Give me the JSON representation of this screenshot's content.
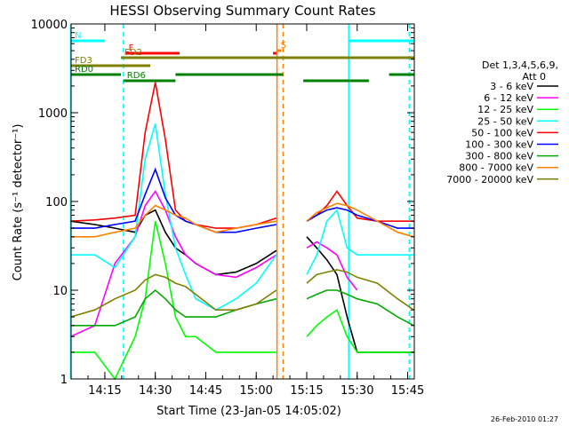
{
  "chart_data": {
    "type": "line",
    "title": "HESSI Observing Summary Count Rates",
    "xlabel": "Start Time (23-Jan-05 14:05:02)",
    "ylabel": "Count Rate (s⁻¹ detector⁻¹)",
    "y_scale": "log",
    "ylim": [
      1,
      10000
    ],
    "xlim_minutes": [
      14.083,
      15.783
    ],
    "x_ticks": [
      {
        "t": 14.25,
        "label": "14:15"
      },
      {
        "t": 14.5,
        "label": "14:30"
      },
      {
        "t": 14.75,
        "label": "14:45"
      },
      {
        "t": 15.0,
        "label": "15:00"
      },
      {
        "t": 15.25,
        "label": "15:15"
      },
      {
        "t": 15.5,
        "label": "15:30"
      },
      {
        "t": 15.75,
        "label": "15:45"
      }
    ],
    "y_ticks": [
      {
        "v": 1,
        "label": "1"
      },
      {
        "v": 10,
        "label": "10"
      },
      {
        "v": 100,
        "label": "100"
      },
      {
        "v": 1000,
        "label": "1000"
      },
      {
        "v": 10000,
        "label": "10000"
      }
    ],
    "legend_header": [
      "Det 1,3,4,5,6,9,",
      "Att 0"
    ],
    "legend_placement": "right",
    "timestamp": "26-Feb-2010 01:27",
    "series": [
      {
        "name": "3 - 6 keV",
        "color": "#000000",
        "x": [
          14.08,
          14.2,
          14.3,
          14.4,
          14.45,
          14.5,
          14.55,
          14.6,
          14.65,
          14.7,
          14.8,
          14.9,
          15.0,
          15.1,
          15.15,
          15.2,
          15.25,
          15.3,
          15.35,
          15.4,
          15.45,
          15.5,
          15.6,
          15.7,
          15.78
        ],
        "y": [
          60,
          55,
          50,
          45,
          70,
          80,
          45,
          30,
          25,
          20,
          15,
          16,
          20,
          28,
          null,
          null,
          40,
          30,
          22,
          15,
          5,
          2,
          2,
          2,
          2
        ]
      },
      {
        "name": "6 - 12 keV",
        "color": "#ff00ff",
        "x": [
          14.08,
          14.2,
          14.3,
          14.4,
          14.45,
          14.5,
          14.55,
          14.6,
          14.65,
          14.7,
          14.8,
          14.9,
          15.0,
          15.1,
          15.15,
          15.2,
          15.25,
          15.3,
          15.35,
          15.4,
          15.45,
          15.5
        ],
        "y": [
          3,
          4,
          20,
          40,
          90,
          130,
          80,
          40,
          25,
          20,
          15,
          14,
          18,
          25,
          null,
          null,
          30,
          35,
          30,
          25,
          14,
          10
        ]
      },
      {
        "name": "12 - 25 keV",
        "color": "#00ff00",
        "x": [
          14.08,
          14.2,
          14.3,
          14.4,
          14.45,
          14.5,
          14.55,
          14.6,
          14.65,
          14.7,
          14.8,
          14.9,
          15.0,
          15.1,
          15.15,
          15.2,
          15.25,
          15.3,
          15.35,
          15.4,
          15.45,
          15.5,
          15.6,
          15.7,
          15.78
        ],
        "y": [
          2,
          2,
          1,
          3,
          8,
          60,
          20,
          5,
          3,
          3,
          2,
          2,
          2,
          2,
          null,
          null,
          3,
          4,
          5,
          6,
          3,
          2,
          2,
          2,
          2
        ]
      },
      {
        "name": "25 - 50 keV",
        "color": "#00ffff",
        "x": [
          14.08,
          14.2,
          14.3,
          14.4,
          14.45,
          14.5,
          14.55,
          14.6,
          14.65,
          14.7,
          14.8,
          14.9,
          15.0,
          15.1,
          15.15,
          15.2,
          15.25,
          15.3,
          15.35,
          15.4,
          15.45,
          15.5,
          15.6,
          15.7,
          15.78
        ],
        "y": [
          25,
          25,
          18,
          40,
          300,
          750,
          120,
          30,
          15,
          8,
          6,
          8,
          12,
          25,
          null,
          null,
          15,
          25,
          60,
          80,
          30,
          25,
          25,
          25,
          25
        ]
      },
      {
        "name": "50 - 100 keV",
        "color": "#ff0000",
        "x": [
          14.08,
          14.2,
          14.3,
          14.4,
          14.45,
          14.5,
          14.55,
          14.6,
          14.65,
          14.7,
          14.8,
          14.9,
          15.0,
          15.1,
          15.15,
          15.2,
          15.25,
          15.3,
          15.35,
          15.4,
          15.45,
          15.5,
          15.6,
          15.7,
          15.78
        ],
        "y": [
          60,
          62,
          65,
          70,
          600,
          2200,
          500,
          80,
          60,
          55,
          50,
          50,
          55,
          65,
          null,
          null,
          60,
          70,
          90,
          130,
          90,
          65,
          60,
          60,
          60
        ]
      },
      {
        "name": "100 - 300 keV",
        "color": "#0000ff",
        "x": [
          14.08,
          14.2,
          14.3,
          14.4,
          14.45,
          14.5,
          14.55,
          14.6,
          14.65,
          14.7,
          14.8,
          14.9,
          15.0,
          15.1,
          15.15,
          15.2,
          15.25,
          15.3,
          15.35,
          15.4,
          15.45,
          15.5,
          15.6,
          15.7,
          15.78
        ],
        "y": [
          50,
          50,
          55,
          60,
          120,
          230,
          110,
          70,
          60,
          55,
          45,
          45,
          50,
          55,
          null,
          null,
          60,
          70,
          80,
          85,
          80,
          70,
          60,
          50,
          50
        ]
      },
      {
        "name": "300 - 800 keV",
        "color": "#00aa00",
        "x": [
          14.08,
          14.2,
          14.3,
          14.4,
          14.45,
          14.5,
          14.55,
          14.6,
          14.65,
          14.7,
          14.8,
          14.9,
          15.0,
          15.1,
          15.15,
          15.2,
          15.25,
          15.3,
          15.35,
          15.4,
          15.45,
          15.5,
          15.6,
          15.7,
          15.78
        ],
        "y": [
          4,
          4,
          4,
          5,
          8,
          10,
          8,
          6,
          5,
          5,
          5,
          6,
          7,
          8,
          null,
          null,
          8,
          9,
          10,
          10,
          9,
          8,
          7,
          5,
          4
        ]
      },
      {
        "name": "800 - 7000 keV",
        "color": "#ff8000",
        "x": [
          14.08,
          14.2,
          14.3,
          14.4,
          14.45,
          14.5,
          14.55,
          14.6,
          14.65,
          14.7,
          14.8,
          14.9,
          15.0,
          15.1,
          15.15,
          15.2,
          15.25,
          15.3,
          15.35,
          15.4,
          15.45,
          15.5,
          15.6,
          15.7,
          15.78
        ],
        "y": [
          40,
          40,
          45,
          50,
          70,
          90,
          80,
          70,
          65,
          55,
          45,
          50,
          55,
          60,
          null,
          null,
          60,
          75,
          85,
          95,
          90,
          80,
          60,
          45,
          40
        ]
      },
      {
        "name": "7000 - 20000 keV",
        "color": "#808000",
        "x": [
          14.08,
          14.2,
          14.3,
          14.4,
          14.45,
          14.5,
          14.55,
          14.6,
          14.65,
          14.7,
          14.8,
          14.9,
          15.0,
          15.1,
          15.15,
          15.2,
          15.25,
          15.3,
          15.35,
          15.4,
          15.45,
          15.5,
          15.6,
          15.7,
          15.78
        ],
        "y": [
          5,
          6,
          8,
          10,
          13,
          15,
          14,
          12,
          11,
          9,
          6,
          6,
          7,
          10,
          null,
          null,
          12,
          15,
          16,
          17,
          16,
          14,
          12,
          8,
          6
        ]
      }
    ],
    "vertical_markers": [
      {
        "t": 14.08,
        "color": "#00ffff",
        "style": "solid"
      },
      {
        "t": 14.342,
        "color": "#00ffff",
        "style": "dashed"
      },
      {
        "t": 15.103,
        "color": "#ff8000",
        "style": "solid"
      },
      {
        "t": 15.133,
        "color": "#ff8000",
        "style": "dashed"
      },
      {
        "t": 15.458,
        "color": "#00ffff",
        "style": "solid"
      },
      {
        "t": 15.758,
        "color": "#00ffff",
        "style": "dashed"
      }
    ],
    "flag_bars": [
      {
        "label": "N",
        "color": "#00ffff",
        "segments": [
          [
            14.083,
            14.25
          ],
          [
            15.46,
            15.783
          ]
        ]
      },
      {
        "label": "S",
        "color": "#ff8000",
        "segments": [
          [
            15.103,
            15.125
          ]
        ]
      },
      {
        "label": "F",
        "color": "#ff0000",
        "segments": [
          [
            14.35,
            14.62
          ],
          [
            15.083,
            15.1
          ]
        ]
      },
      {
        "label": "FD2",
        "color": "#808000",
        "segments": [
          [
            14.33,
            15.783
          ]
        ]
      },
      {
        "label": "FD3",
        "color": "#808000",
        "segments": [
          [
            14.083,
            14.475
          ]
        ]
      },
      {
        "label": "RD0",
        "color": "#008000",
        "segments": [
          [
            14.083,
            14.33
          ],
          [
            14.6,
            15.133
          ],
          [
            15.658,
            15.783
          ]
        ]
      },
      {
        "label": "RD6",
        "color": "#008000",
        "segments": [
          [
            14.342,
            14.6
          ],
          [
            15.233,
            15.558
          ]
        ]
      }
    ]
  }
}
